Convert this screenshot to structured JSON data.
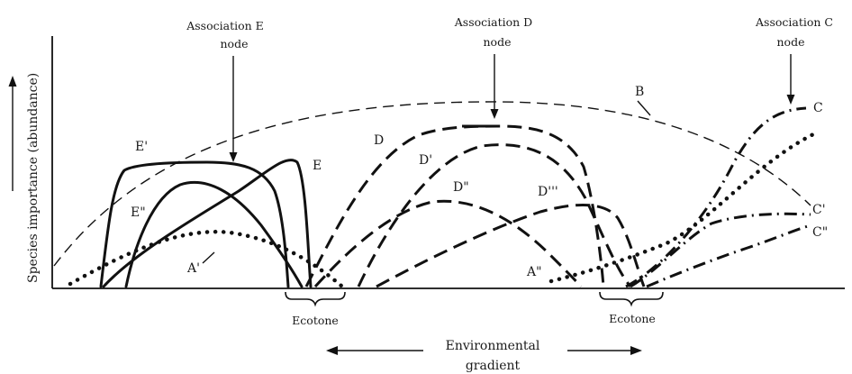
{
  "figure": {
    "y_axis_label": "Species importance (abundance)",
    "x_axis_label_line1": "Environmental",
    "x_axis_label_line2": "gradient"
  },
  "nodes": {
    "e_line1": "Association E",
    "e_line2": "node",
    "d_line1": "Association D",
    "d_line2": "node",
    "c_line1": "Association C",
    "c_line2": "node"
  },
  "ecotones": {
    "left": "Ecotone",
    "right": "Ecotone"
  },
  "curve_labels": {
    "b": "B",
    "a_prime": "A'",
    "a_dbl": "A\"",
    "e": "E",
    "e_prime": "E'",
    "e_dbl": "E\"",
    "d": "D",
    "d_prime": "D'",
    "d_dbl": "D\"",
    "d_triple": "D'''",
    "c": "C",
    "c_prime": "C'",
    "c_dbl": "C\""
  },
  "line_styles": {
    "association_e": "solid",
    "association_d": "dashed",
    "association_c": "dash-dot",
    "species_a": "dotted",
    "species_b": "thin-dashed"
  },
  "colors": {
    "ink": "#111111",
    "background": "#ffffff"
  }
}
